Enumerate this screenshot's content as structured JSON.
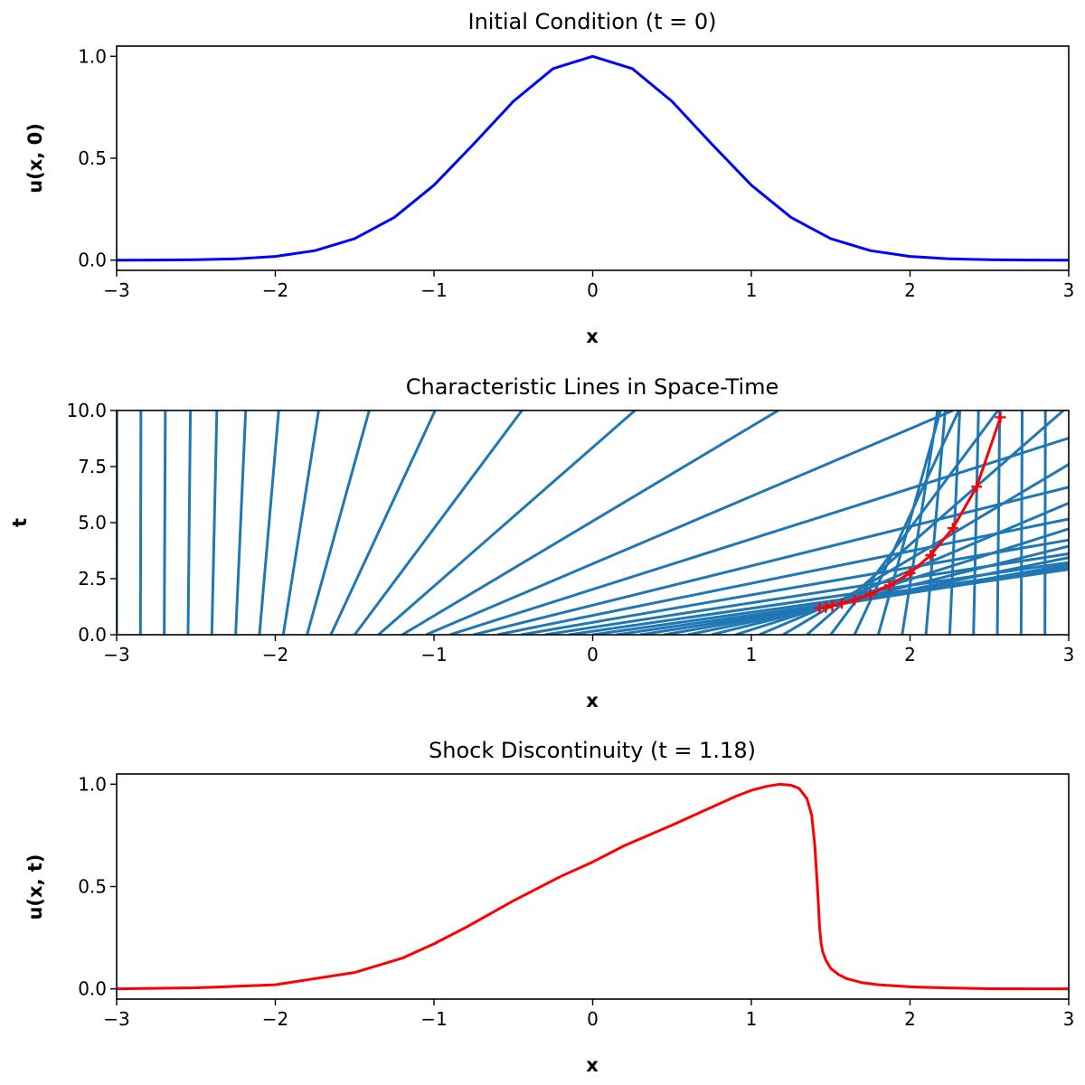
{
  "chart_data": [
    {
      "type": "line",
      "title": "Initial Condition (t = 0)",
      "xlabel": "x",
      "ylabel": "u(x, 0)",
      "xlim": [
        -3,
        3
      ],
      "ylim": [
        -0.05,
        1.05
      ],
      "xticks": [
        -3,
        -2,
        -1,
        0,
        1,
        2,
        3
      ],
      "xtick_labels": [
        "−3",
        "−2",
        "−1",
        "0",
        "1",
        "2",
        "3"
      ],
      "yticks": [
        0,
        0.5,
        1
      ],
      "ytick_labels": [
        "0.0",
        "0.5",
        "1.0"
      ],
      "grid": false,
      "series": [
        {
          "color": "#0000ff",
          "x": [
            -3,
            -2.75,
            -2.5,
            -2.25,
            -2,
            -1.75,
            -1.5,
            -1.25,
            -1,
            -0.75,
            -0.5,
            -0.25,
            0,
            0.25,
            0.5,
            0.75,
            1,
            1.25,
            1.5,
            1.75,
            2,
            2.25,
            2.5,
            2.75,
            3
          ],
          "y": [
            0.0001,
            0.0005,
            0.0019,
            0.0063,
            0.0183,
            0.0468,
            0.1054,
            0.2096,
            0.3679,
            0.5698,
            0.7788,
            0.9394,
            1.0,
            0.9394,
            0.7788,
            0.5698,
            0.3679,
            0.2096,
            0.1054,
            0.0468,
            0.0183,
            0.0063,
            0.0019,
            0.0005,
            0.0001
          ]
        }
      ]
    },
    {
      "type": "line",
      "title": "Characteristic Lines in Space-Time",
      "xlabel": "x",
      "ylabel": "t",
      "xlim": [
        -3,
        3
      ],
      "ylim": [
        0,
        10
      ],
      "xticks": [
        -3,
        -2,
        -1,
        0,
        1,
        2,
        3
      ],
      "xtick_labels": [
        "−3",
        "−2",
        "−1",
        "0",
        "1",
        "2",
        "3"
      ],
      "yticks": [
        0,
        2.5,
        5,
        7.5,
        10
      ],
      "ytick_labels": [
        "0.0",
        "2.5",
        "5.0",
        "7.5",
        "10.0"
      ],
      "grid": false,
      "characteristics": {
        "color": "#1f77b4",
        "x0": [
          -3,
          -2.85,
          -2.7,
          -2.55,
          -2.4,
          -2.25,
          -2.1,
          -1.95,
          -1.8,
          -1.65,
          -1.5,
          -1.35,
          -1.2,
          -1.05,
          -0.9,
          -0.75,
          -0.6,
          -0.45,
          -0.3,
          -0.15,
          0,
          0.15,
          0.3,
          0.45,
          0.6,
          0.75,
          0.9,
          1.05,
          1.2,
          1.35,
          1.5,
          1.65,
          1.8,
          1.95,
          2.1,
          2.25,
          2.4,
          2.55,
          2.7,
          2.85
        ],
        "t_max": 10
      },
      "series": [
        {
          "color": "#ff0000",
          "marker": "+",
          "x": [
            1.43,
            1.47,
            1.51,
            1.57,
            1.65,
            1.75,
            1.87,
            2.0,
            2.13,
            2.27,
            2.42,
            2.57
          ],
          "y": [
            1.18,
            1.22,
            1.3,
            1.4,
            1.55,
            1.8,
            2.2,
            2.75,
            3.55,
            4.75,
            6.6,
            9.7
          ]
        }
      ]
    },
    {
      "type": "line",
      "title": "Shock Discontinuity (t = 1.18)",
      "xlabel": "x",
      "ylabel": "u(x, t)",
      "xlim": [
        -3,
        3
      ],
      "ylim": [
        -0.05,
        1.05
      ],
      "xticks": [
        -3,
        -2,
        -1,
        0,
        1,
        2,
        3
      ],
      "xtick_labels": [
        "−3",
        "−2",
        "−1",
        "0",
        "1",
        "2",
        "3"
      ],
      "yticks": [
        0,
        0.5,
        1
      ],
      "ytick_labels": [
        "0.0",
        "0.5",
        "1.0"
      ],
      "grid": false,
      "series": [
        {
          "color": "#ff0000",
          "x": [
            -3,
            -2.5,
            -2,
            -1.5,
            -1.2,
            -1,
            -0.8,
            -0.5,
            -0.2,
            0,
            0.2,
            0.5,
            0.7,
            0.9,
            1.0,
            1.1,
            1.18,
            1.25,
            1.3,
            1.35,
            1.38,
            1.4,
            1.42,
            1.43,
            1.44,
            1.45,
            1.47,
            1.5,
            1.55,
            1.6,
            1.7,
            1.8,
            2.0,
            2.2,
            2.5,
            3
          ],
          "y": [
            0.0,
            0.005,
            0.02,
            0.08,
            0.15,
            0.22,
            0.3,
            0.43,
            0.55,
            0.62,
            0.7,
            0.8,
            0.87,
            0.94,
            0.97,
            0.99,
            1.0,
            0.995,
            0.98,
            0.93,
            0.85,
            0.7,
            0.45,
            0.3,
            0.22,
            0.18,
            0.14,
            0.1,
            0.07,
            0.05,
            0.03,
            0.02,
            0.01,
            0.005,
            0.001,
            0.0
          ]
        }
      ]
    }
  ]
}
